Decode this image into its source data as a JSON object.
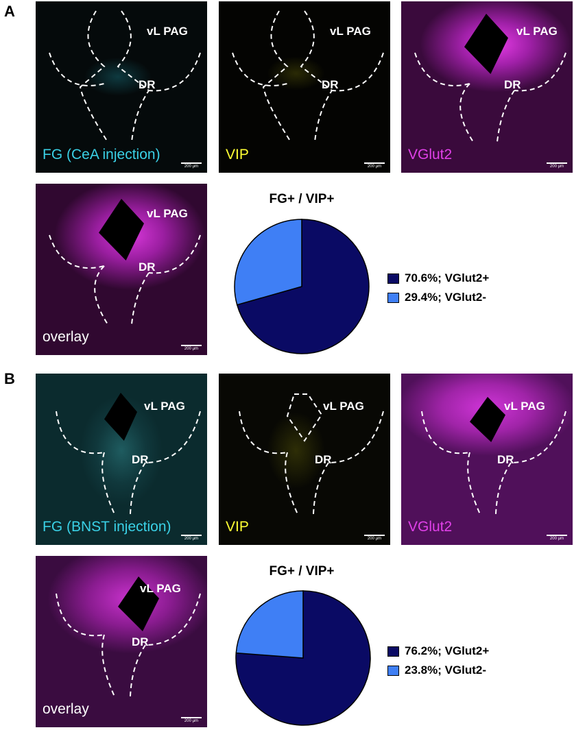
{
  "panels": [
    {
      "letter": "A",
      "images": [
        {
          "label": "FG (CeA injection)",
          "channel": "FG",
          "label_color": "#3ad1e6"
        },
        {
          "label": "VIP",
          "channel": "VIP",
          "label_color": "#ffff33"
        },
        {
          "label": "VGlut2",
          "channel": "VGlut2",
          "label_color": "#e040e8"
        },
        {
          "label": "overlay",
          "channel": "overlay",
          "label_color": "#ffffff"
        }
      ],
      "region_labels": {
        "vlpag": "vL PAG",
        "dr": "DR"
      },
      "scale_bar": "200 µm",
      "pie": {
        "title": "FG+ / VIP+",
        "slices": [
          {
            "label": "70.6%; VGlut2+",
            "value": 70.6,
            "color": "#0a0a64"
          },
          {
            "label": "29.4%; VGlut2-",
            "value": 29.4,
            "color": "#3f7ff5"
          }
        ]
      }
    },
    {
      "letter": "B",
      "images": [
        {
          "label": "FG (BNST injection)",
          "channel": "FG",
          "label_color": "#3ad1e6"
        },
        {
          "label": "VIP",
          "channel": "VIP",
          "label_color": "#ffff33"
        },
        {
          "label": "VGlut2",
          "channel": "VGlut2",
          "label_color": "#e040e8"
        },
        {
          "label": "overlay",
          "channel": "overlay",
          "label_color": "#ffffff"
        }
      ],
      "region_labels": {
        "vlpag": "vL PAG",
        "dr": "DR"
      },
      "scale_bar": "200 µm",
      "pie": {
        "title": "FG+ / VIP+",
        "slices": [
          {
            "label": "76.2%; VGlut2+",
            "value": 76.2,
            "color": "#0a0a64"
          },
          {
            "label": "23.8%; VGlut2-",
            "value": 23.8,
            "color": "#3f7ff5"
          }
        ]
      }
    }
  ]
}
